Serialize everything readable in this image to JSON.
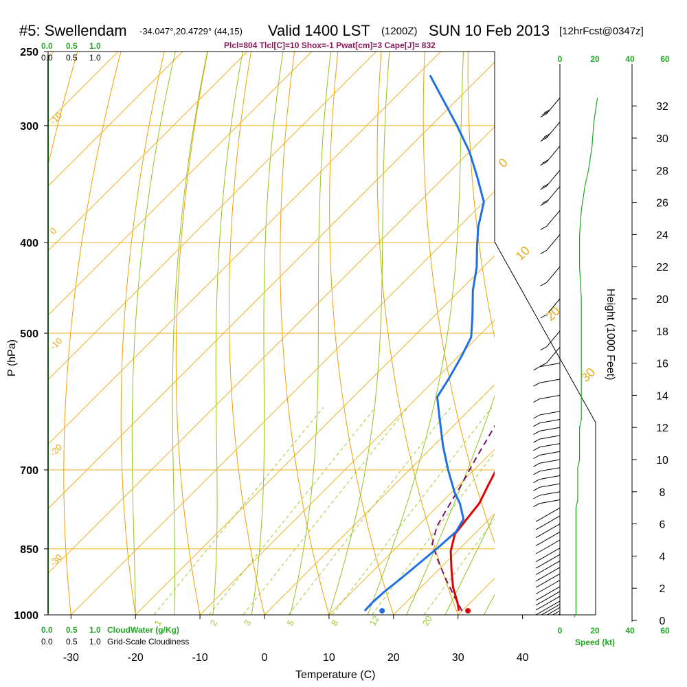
{
  "header": {
    "station": "#5: Swellendam",
    "coords": "-34.047°,20.4729° (44,15)",
    "valid": "Valid 1400 LST",
    "zulu": "(1200Z)",
    "date": "SUN 10 Feb 2013",
    "forecast": "[12hrFcst@0347z]",
    "indices": "Plcl=804 Tlcl[C]=10 Shox=-1 Pwat[cm]=3 Cape[J]= 832"
  },
  "colors": {
    "temperature": "#e00000",
    "dewpoint": "#1e6fe6",
    "parcel": "#7a1060",
    "isotherm": "#f0b020",
    "dry_adiabat": "#f0a000",
    "moist_adiabat": "#8fc41f",
    "mixing_ratio": "#9acd32",
    "green_label": "#1fa81f"
  },
  "chart_data": {
    "type": "line",
    "title": "#5: Swellendam",
    "xlabel": "Temperature (C)",
    "ylabel": "P (hPa)",
    "right_axis_label": "Height (1000 Feet)",
    "x_ticks": [
      "-30",
      "-20",
      "-10",
      "0",
      "10",
      "20",
      "30",
      "40"
    ],
    "x_tick_values": [
      -30,
      -20,
      -10,
      0,
      10,
      20,
      30,
      40
    ],
    "y_ticks": [
      "250",
      "300",
      "400",
      "500",
      "700",
      "850",
      "1000"
    ],
    "y_tick_values": [
      250,
      300,
      400,
      500,
      700,
      850,
      1000
    ],
    "height_ticks": [
      "0",
      "2",
      "4",
      "6",
      "8",
      "10",
      "12",
      "14",
      "16",
      "18",
      "20",
      "22",
      "24",
      "26",
      "28",
      "30",
      "32"
    ],
    "height_tick_values": [
      0,
      2,
      4,
      6,
      8,
      10,
      12,
      14,
      16,
      18,
      20,
      22,
      24,
      26,
      28,
      30,
      32
    ],
    "xlim": [
      -35,
      45
    ],
    "ylim": [
      1000,
      250
    ],
    "isotherm_labels": [
      "-10",
      "0",
      "-10",
      "-20",
      "-30",
      "0",
      "10",
      "20",
      "30"
    ],
    "mixing_ratio_labels": [
      "1",
      "2",
      "3",
      "5",
      "8",
      "12",
      "20"
    ],
    "cloud_scale_top": [
      "0.0",
      "0.5",
      "1.0"
    ],
    "cloud_scale_top2": [
      "0.0",
      "0.5",
      "1.0"
    ],
    "cloud_scale_bottom": [
      "0.0",
      "0.5",
      "1.0"
    ],
    "cloud_scale_bottom2": [
      "0.0",
      "0.5",
      "1.0"
    ],
    "cloudwater_label": "CloudWater (g/Kg)",
    "cloudiness_label": "Grid-Scale Cloudiness",
    "speed_ticks": [
      "0",
      "20",
      "40",
      "60"
    ],
    "speed_label": "Speed (kt)",
    "series": [
      {
        "name": "temperature",
        "points": [
          [
            29.5,
            990
          ],
          [
            28,
            970
          ],
          [
            25,
            935
          ],
          [
            22,
            895
          ],
          [
            19,
            855
          ],
          [
            17,
            820
          ],
          [
            16.5,
            790
          ],
          [
            16,
            760
          ],
          [
            14.5,
            725
          ],
          [
            13,
            690
          ],
          [
            11,
            640
          ],
          [
            8.5,
            590
          ],
          [
            6,
            545
          ],
          [
            3,
            490
          ],
          [
            0.5,
            445
          ],
          [
            -1.5,
            405
          ],
          [
            -3,
            370
          ],
          [
            -3.2,
            340
          ],
          [
            -2.8,
            320
          ],
          [
            -2.5,
            300
          ],
          [
            -2.5,
            283
          ],
          [
            -2.8,
            265
          ]
        ]
      },
      {
        "name": "dewpoint",
        "points": [
          [
            14.9,
            990
          ],
          [
            14.8,
            970
          ],
          [
            15,
            945
          ],
          [
            15.5,
            915
          ],
          [
            16,
            880
          ],
          [
            16.5,
            845
          ],
          [
            16.8,
            815
          ],
          [
            16,
            790
          ],
          [
            13,
            760
          ],
          [
            10.5,
            740
          ],
          [
            6,
            700
          ],
          [
            1.5,
            660
          ],
          [
            -3.5,
            615
          ],
          [
            -7,
            585
          ],
          [
            -8,
            560
          ],
          [
            -9.5,
            530
          ],
          [
            -11,
            505
          ],
          [
            -14,
            480
          ],
          [
            -18,
            450
          ],
          [
            -21,
            425
          ],
          [
            -24,
            405
          ],
          [
            -27,
            385
          ],
          [
            -30,
            362
          ],
          [
            -35,
            340
          ],
          [
            -40,
            320
          ],
          [
            -46,
            300
          ],
          [
            -52,
            282
          ],
          [
            -58,
            265
          ]
        ]
      },
      {
        "name": "parcel",
        "points": [
          [
            30,
            990
          ],
          [
            27,
            960
          ],
          [
            23,
            920
          ],
          [
            19,
            880
          ],
          [
            15,
            840
          ],
          [
            13,
            804
          ],
          [
            12,
            775
          ],
          [
            10.5,
            730
          ],
          [
            8.5,
            680
          ],
          [
            6.5,
            630
          ],
          [
            4,
            580
          ],
          [
            1,
            530
          ],
          [
            -2.5,
            480
          ],
          [
            -6,
            440
          ],
          [
            -10,
            400
          ],
          [
            -14.5,
            365
          ],
          [
            -18.5,
            338
          ]
        ]
      }
    ],
    "surface_temperature": 30.9,
    "surface_dewpoint": 17.6,
    "wind_profile": {
      "heights_kft": [
        0.2,
        0.4,
        0.6,
        0.8,
        1.0,
        1.2,
        1.5,
        1.8,
        2.1,
        2.5,
        2.9,
        3.3,
        3.7,
        4.1,
        4.5,
        5.0,
        5.5,
        6.0,
        6.5,
        7.0,
        7.5,
        8.0,
        8.5,
        9.0,
        9.5,
        10.0,
        10.5,
        11.0,
        11.5,
        12.0,
        12.5,
        13.0,
        14.0,
        15.0,
        16.0,
        17.0,
        18.0,
        20.0,
        22.0,
        24.0,
        25.5,
        27.0,
        28.0,
        29.5,
        31.0,
        32.5
      ],
      "speeds_kt": [
        2,
        3,
        3,
        3,
        3,
        3,
        3,
        3,
        3,
        3,
        3,
        3,
        3,
        3,
        3,
        3,
        3,
        3,
        3,
        3,
        4,
        4,
        4,
        4,
        4,
        5,
        5,
        5,
        5,
        5,
        6,
        6,
        6,
        6,
        6,
        6,
        6,
        6,
        5,
        5,
        6,
        8,
        10,
        12,
        13,
        15
      ]
    }
  }
}
